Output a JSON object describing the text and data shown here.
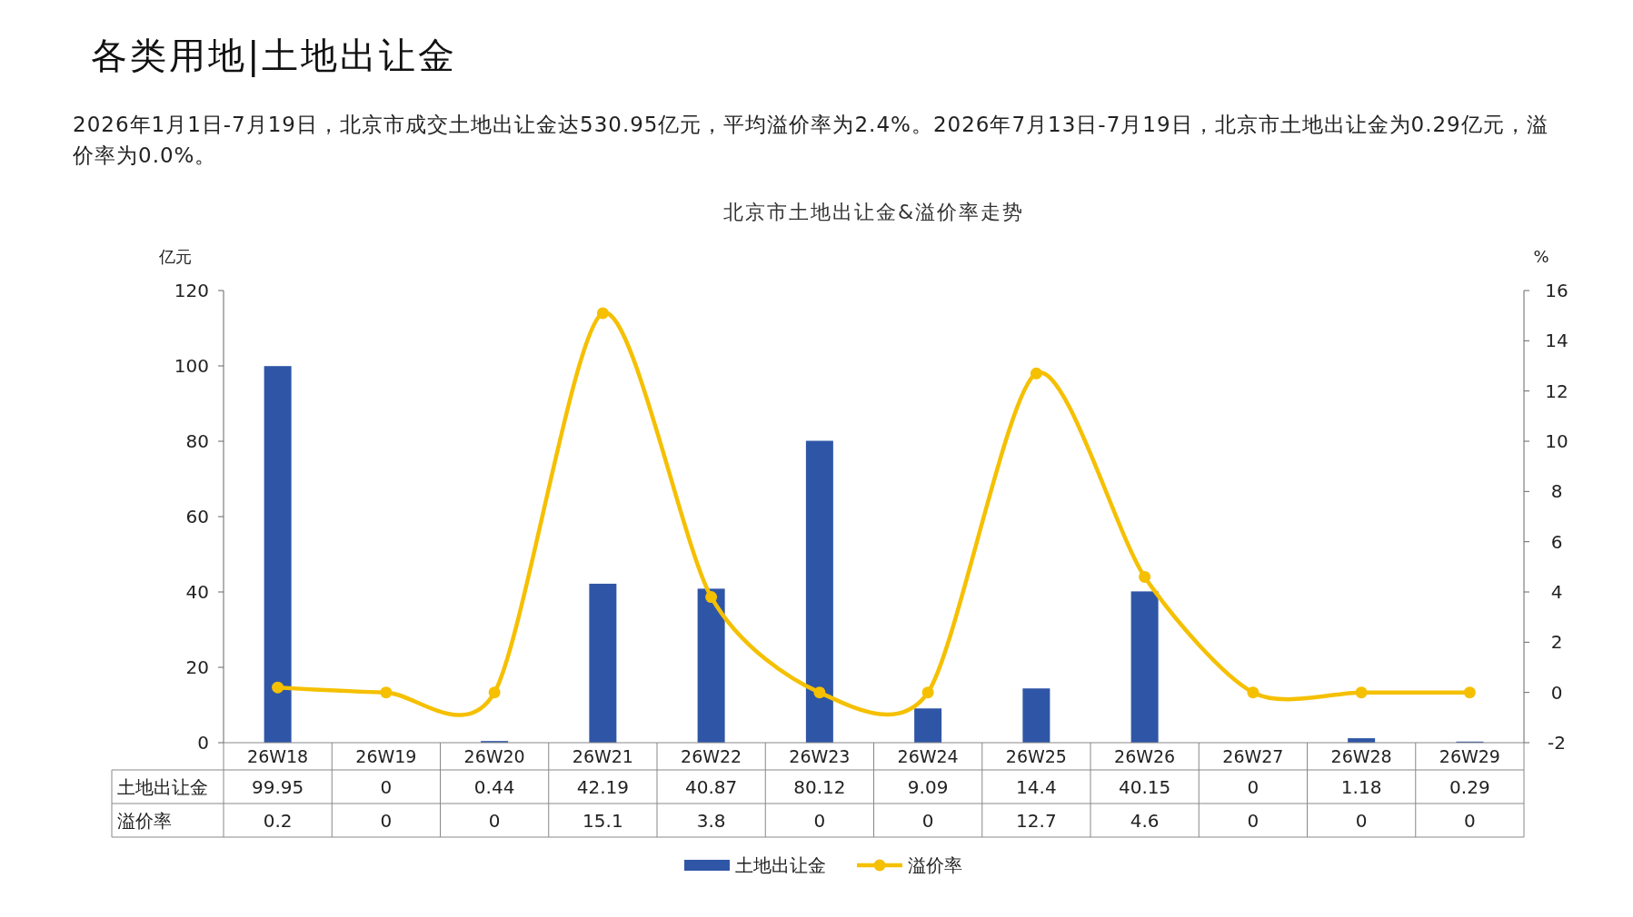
{
  "chart_data": {
    "type": "bar",
    "title": "北京市土地出让金&溢价率走势",
    "subtitle": "2026年1月1日-7月19日，北京市成交土地出让金达530.95亿元，平均溢价率为2.4%。2026年7月13日-7月19日，北京市土地出让金为0.29亿元，溢价率为0.0%。",
    "annotations": [
      "各类用地|土地出让金"
    ],
    "ylabel": "亿元",
    "y2label": "%",
    "categories": [
      "26W18",
      "26W19",
      "26W20",
      "26W21",
      "26W22",
      "26W23",
      "26W24",
      "26W25",
      "26W26",
      "26W27",
      "26W28",
      "26W29"
    ],
    "series": [
      {
        "name": "土地出让金",
        "color": "#2f56a6",
        "values": [
          99.95,
          0,
          0.44,
          42.19,
          40.87,
          80.12,
          9.09,
          14.4,
          40.15,
          0,
          1.18,
          0.29
        ]
      },
      {
        "name": "溢价率",
        "type": "line",
        "axis": "y2",
        "color": "#f5c000",
        "values": [
          0.2,
          0,
          0,
          15.1,
          3.8,
          0,
          0,
          12.7,
          4.6,
          0,
          0,
          0
        ]
      }
    ],
    "ylim": [
      0,
      120
    ],
    "yticks": [
      0,
      20,
      40,
      60,
      80,
      100,
      120
    ],
    "y2lim": [
      -2,
      16
    ],
    "y2ticks": [
      -2,
      0,
      2,
      4,
      6,
      8,
      10,
      12,
      14,
      16
    ],
    "data_labels": true,
    "grid": false,
    "legend": "bottom",
    "marker": "circle"
  }
}
